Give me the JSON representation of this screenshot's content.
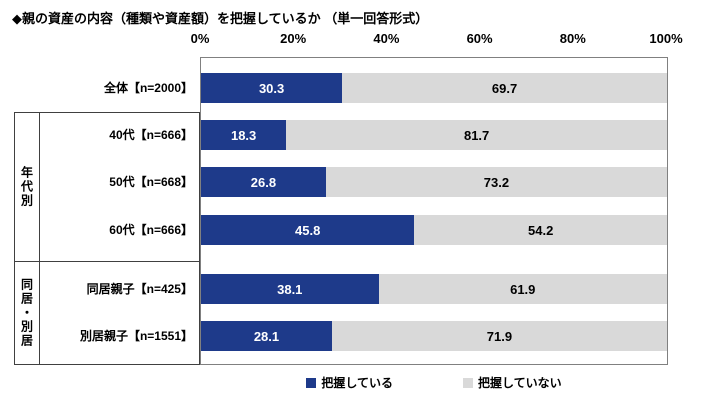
{
  "chart_data": {
    "type": "bar",
    "orientation": "horizontal",
    "stacked": true,
    "title": "◆親の資産の内容（種類や資産額）を把握しているか （単一回答形式）",
    "x_ticks": [
      "0%",
      "20%",
      "40%",
      "60%",
      "80%",
      "100%"
    ],
    "xlim": [
      0,
      100
    ],
    "grid": false,
    "legend_position": "bottom",
    "categories": [
      "全体【n=2000】",
      "40代【n=666】",
      "50代【n=668】",
      "60代【n=666】",
      "同居親子【n=425】",
      "別居親子【n=1551】"
    ],
    "row_groups": [
      {
        "label": "年代別",
        "first_row": 1,
        "last_row": 3
      },
      {
        "label": "同居・別居",
        "first_row": 4,
        "last_row": 5
      }
    ],
    "series": [
      {
        "name": "把握している",
        "color": "#1e3a8a",
        "label_color": "#ffffff",
        "values": [
          30.3,
          18.3,
          26.8,
          45.8,
          38.1,
          28.1
        ]
      },
      {
        "name": "把握していない",
        "color": "#d9d9d9",
        "label_color": "#000000",
        "values": [
          69.7,
          81.7,
          73.2,
          54.2,
          61.9,
          71.9
        ]
      }
    ]
  }
}
